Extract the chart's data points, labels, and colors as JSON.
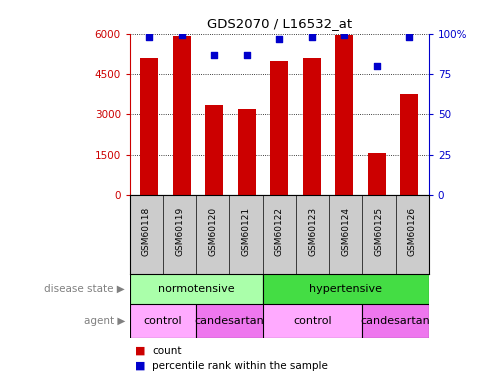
{
  "title": "GDS2070 / L16532_at",
  "samples": [
    "GSM60118",
    "GSM60119",
    "GSM60120",
    "GSM60121",
    "GSM60122",
    "GSM60123",
    "GSM60124",
    "GSM60125",
    "GSM60126"
  ],
  "counts": [
    5100,
    5900,
    3350,
    3200,
    5000,
    5100,
    5950,
    1550,
    3750
  ],
  "percentiles": [
    98,
    99,
    87,
    87,
    97,
    98,
    99,
    80,
    98
  ],
  "ylim_left": [
    0,
    6000
  ],
  "ylim_right": [
    0,
    100
  ],
  "yticks_left": [
    0,
    1500,
    3000,
    4500,
    6000
  ],
  "yticks_right": [
    0,
    25,
    50,
    75,
    100
  ],
  "bar_color": "#cc0000",
  "dot_color": "#0000cc",
  "disease_state_groups": [
    {
      "text": "normotensive",
      "start": 0,
      "end": 4,
      "color": "#aaffaa"
    },
    {
      "text": "hypertensive",
      "start": 4,
      "end": 9,
      "color": "#44dd44"
    }
  ],
  "agent_groups": [
    {
      "text": "control",
      "start": 0,
      "end": 2,
      "color": "#ffaaff"
    },
    {
      "text": "candesartan",
      "start": 2,
      "end": 4,
      "color": "#ee77ee"
    },
    {
      "text": "control",
      "start": 4,
      "end": 7,
      "color": "#ffaaff"
    },
    {
      "text": "candesartan",
      "start": 7,
      "end": 9,
      "color": "#ee77ee"
    }
  ],
  "sample_bg_color": "#cccccc",
  "legend_count_color": "#cc0000",
  "legend_pct_color": "#0000cc"
}
